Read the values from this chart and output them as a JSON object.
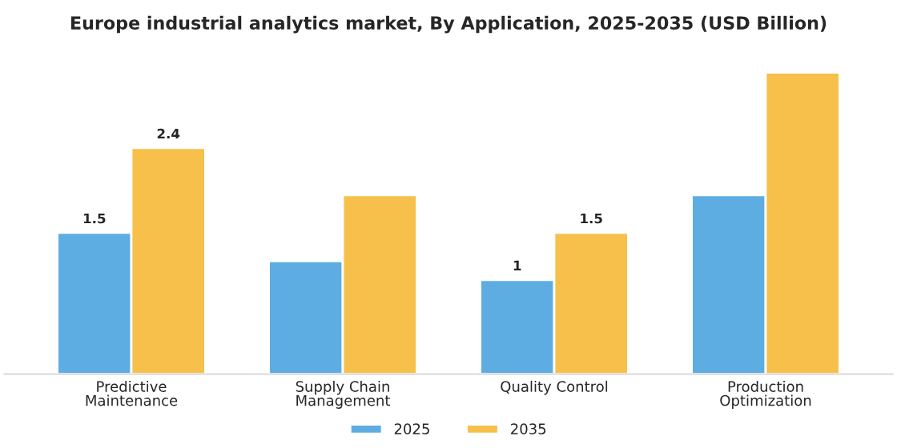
{
  "chart_data": {
    "type": "bar",
    "title": "Europe industrial analytics market, By Application, 2025-2035 (USD Billion)",
    "categories": [
      "Predictive\nMaintenance",
      "Supply Chain\nManagement",
      "Quality Control",
      "Production\nOptimization"
    ],
    "series": [
      {
        "name": "2025",
        "color": "#5dade2",
        "values": [
          1.5,
          1.2,
          1,
          1.9
        ],
        "value_labels": [
          "1.5",
          null,
          "1",
          null
        ]
      },
      {
        "name": "2035",
        "color": "#f6c04a",
        "values": [
          2.4,
          1.9,
          1.5,
          3.2
        ],
        "value_labels": [
          "2.4",
          null,
          "1.5",
          null
        ]
      }
    ],
    "legend": "bottom",
    "grid": false
  }
}
